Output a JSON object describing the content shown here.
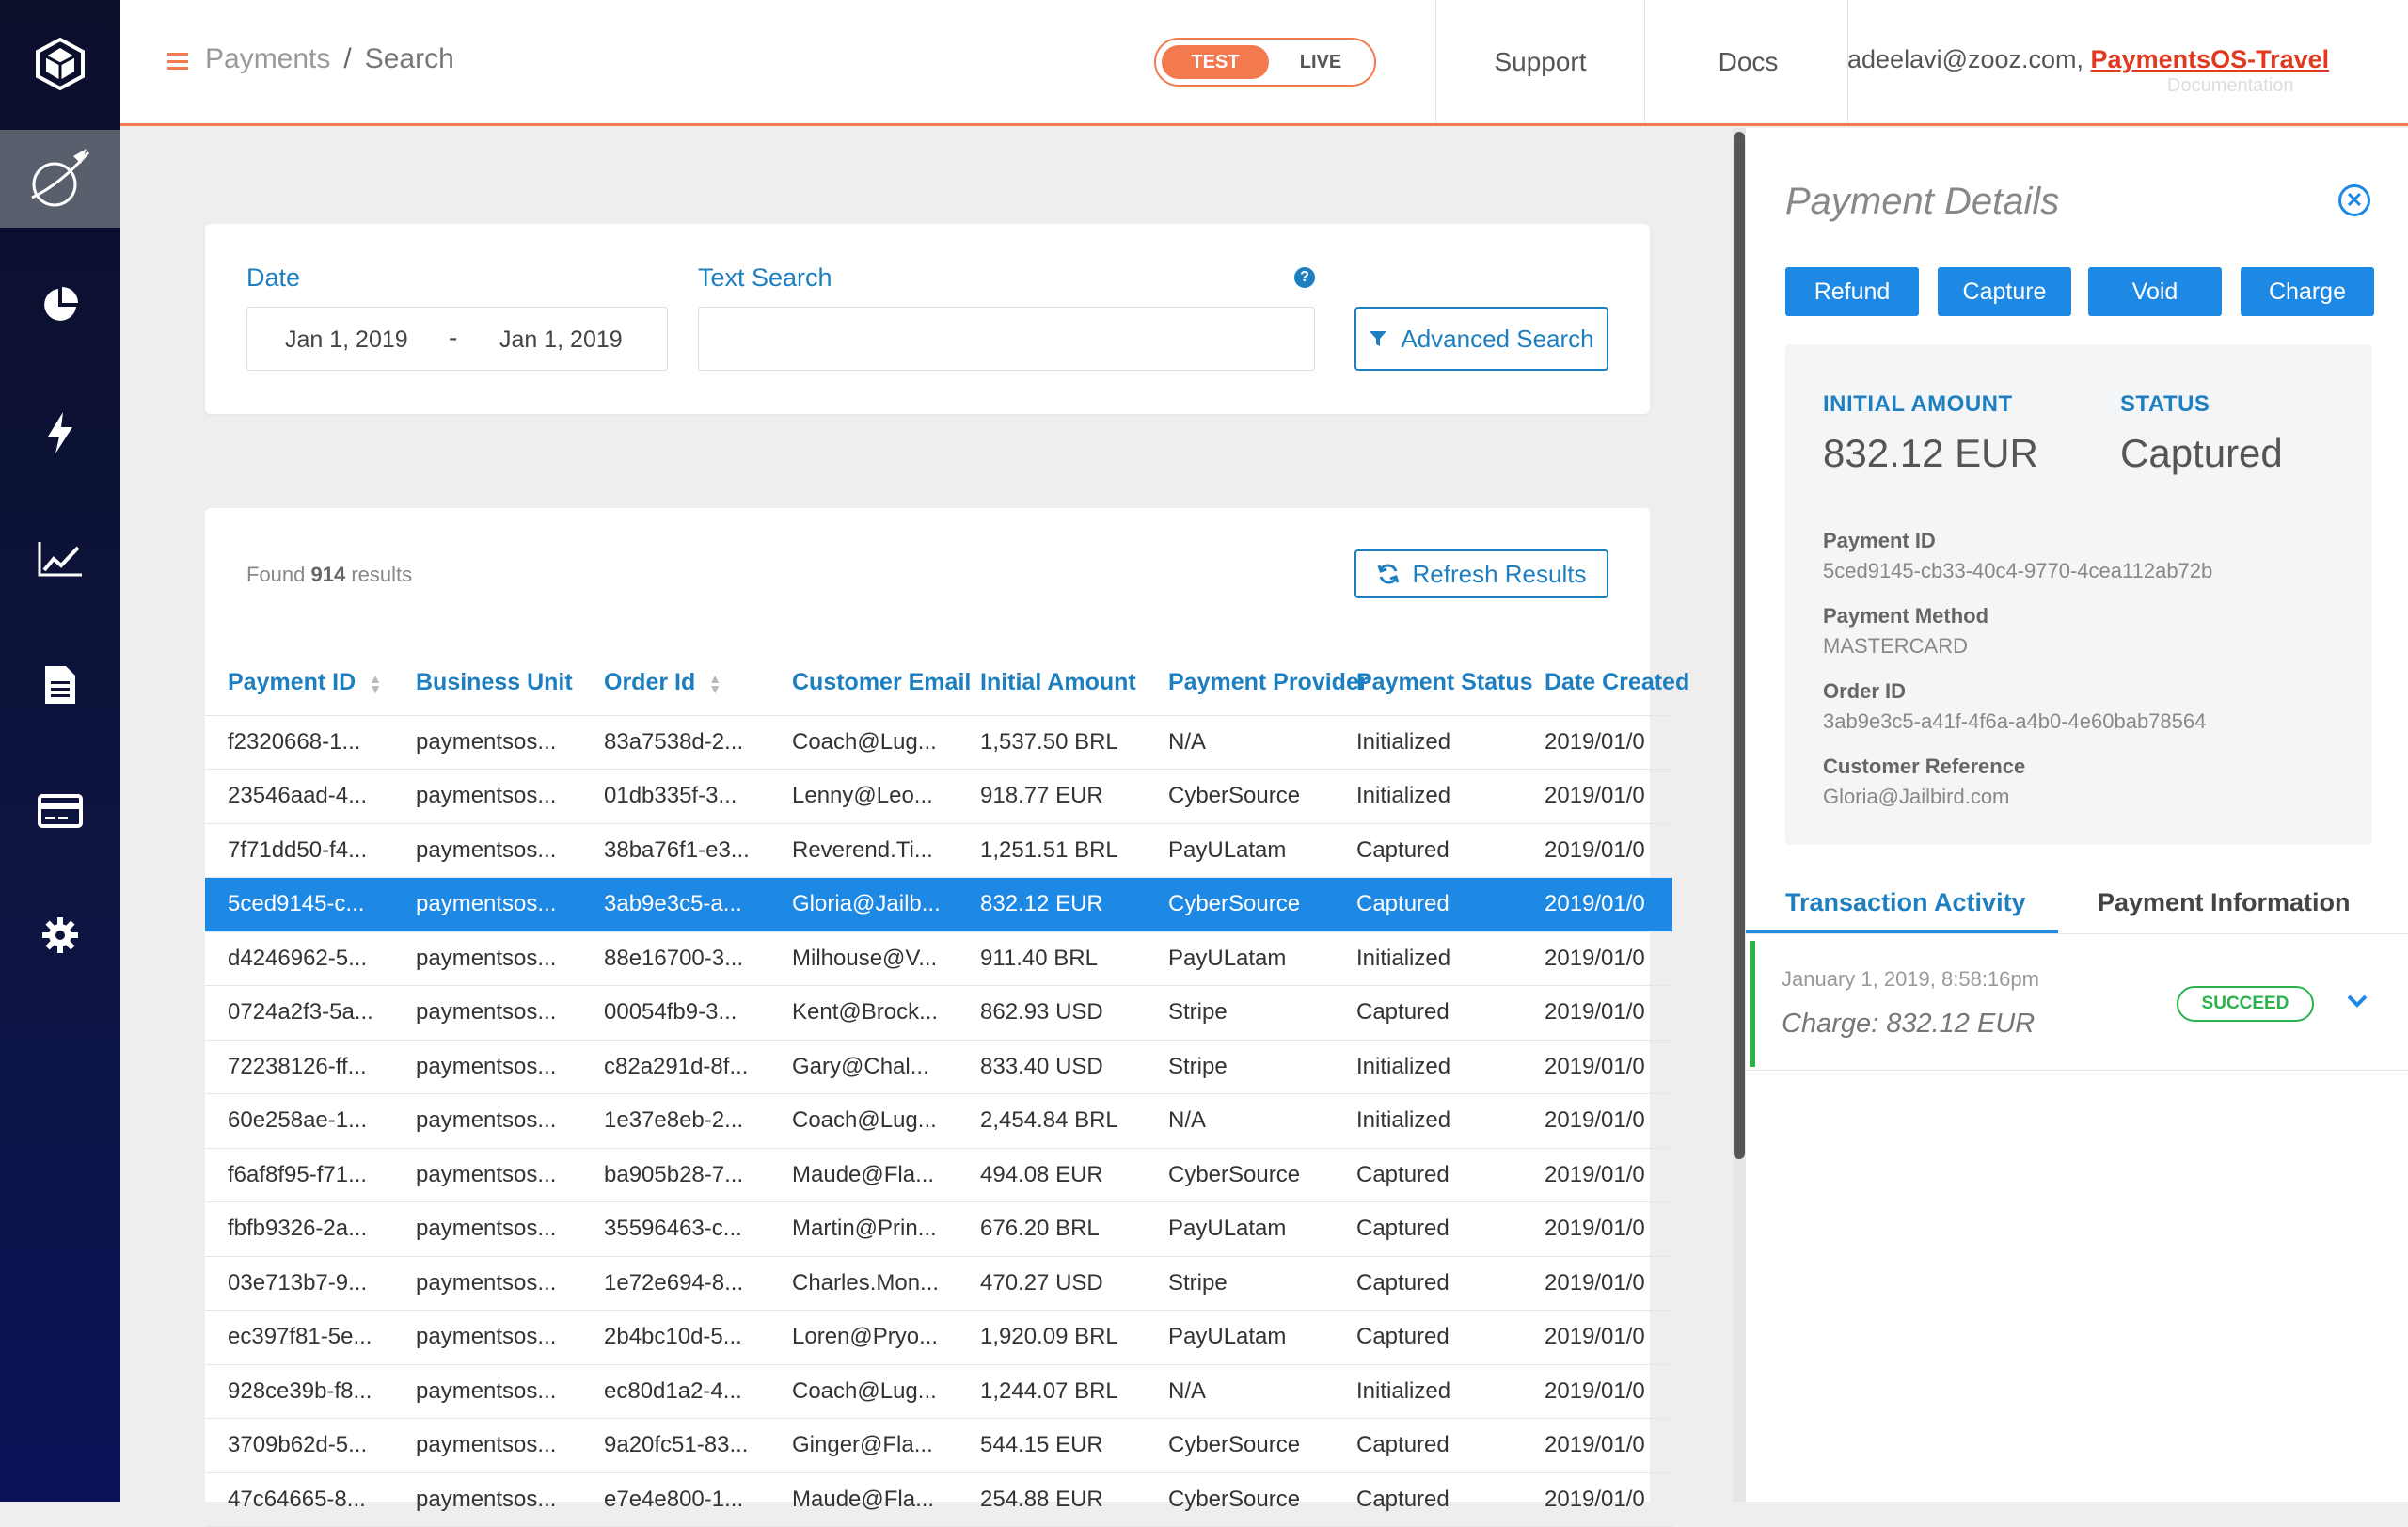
{
  "header": {
    "breadcrumb_root": "Payments",
    "breadcrumb_sep": "/",
    "breadcrumb_current": "Search",
    "env_test": "TEST",
    "env_live": "LIVE",
    "support": "Support",
    "docs": "Docs",
    "user_email": "adeelavi@zooz.com,",
    "account": "PaymentsOS-Travel",
    "ghost_text": "Documentation"
  },
  "sidebar": {
    "items": [
      "logo-icon",
      "rocket-icon",
      "pie-chart-icon",
      "lightning-icon",
      "line-chart-icon",
      "document-icon",
      "credit-card-icon",
      "settings-icon"
    ],
    "active": "rocket-icon"
  },
  "search": {
    "date_label": "Date",
    "date_from": "Jan 1, 2019",
    "date_dash": "-",
    "date_to": "Jan 1, 2019",
    "text_label": "Text Search",
    "text_value": "",
    "help": "?",
    "advanced": "Advanced Search"
  },
  "results": {
    "found_prefix": "Found",
    "found_count": "914",
    "found_suffix": "results",
    "refresh": "Refresh Results",
    "columns": [
      "Payment ID",
      "Business Unit",
      "Order Id",
      "Customer Email",
      "Initial Amount",
      "Payment Provider",
      "Payment Status",
      "Date Created"
    ],
    "rows": [
      [
        "f2320668-1...",
        "paymentsos...",
        "83a7538d-2...",
        "Coach@Lug...",
        "1,537.50 BRL",
        "N/A",
        "Initialized",
        "2019/01/0"
      ],
      [
        "23546aad-4...",
        "paymentsos...",
        "01db335f-3...",
        "Lenny@Leo...",
        "918.77 EUR",
        "CyberSource",
        "Initialized",
        "2019/01/0"
      ],
      [
        "7f71dd50-f4...",
        "paymentsos...",
        "38ba76f1-e3...",
        "Reverend.Ti...",
        "1,251.51 BRL",
        "PayULatam",
        "Captured",
        "2019/01/0"
      ],
      [
        "5ced9145-c...",
        "paymentsos...",
        "3ab9e3c5-a...",
        "Gloria@Jailb...",
        "832.12 EUR",
        "CyberSource",
        "Captured",
        "2019/01/0"
      ],
      [
        "d4246962-5...",
        "paymentsos...",
        "88e16700-3...",
        "Milhouse@V...",
        "911.40 BRL",
        "PayULatam",
        "Initialized",
        "2019/01/0"
      ],
      [
        "0724a2f3-5a...",
        "paymentsos...",
        "00054fb9-3...",
        "Kent@Brock...",
        "862.93 USD",
        "Stripe",
        "Captured",
        "2019/01/0"
      ],
      [
        "72238126-ff...",
        "paymentsos...",
        "c82a291d-8f...",
        "Gary@Chal...",
        "833.40 USD",
        "Stripe",
        "Initialized",
        "2019/01/0"
      ],
      [
        "60e258ae-1...",
        "paymentsos...",
        "1e37e8eb-2...",
        "Coach@Lug...",
        "2,454.84 BRL",
        "N/A",
        "Initialized",
        "2019/01/0"
      ],
      [
        "f6af8f95-f71...",
        "paymentsos...",
        "ba905b28-7...",
        "Maude@Fla...",
        "494.08 EUR",
        "CyberSource",
        "Captured",
        "2019/01/0"
      ],
      [
        "fbfb9326-2a...",
        "paymentsos...",
        "35596463-c...",
        "Martin@Prin...",
        "676.20 BRL",
        "PayULatam",
        "Captured",
        "2019/01/0"
      ],
      [
        "03e713b7-9...",
        "paymentsos...",
        "1e72e694-8...",
        "Charles.Mon...",
        "470.27 USD",
        "Stripe",
        "Captured",
        "2019/01/0"
      ],
      [
        "ec397f81-5e...",
        "paymentsos...",
        "2b4bc10d-5...",
        "Loren@Pryo...",
        "1,920.09 BRL",
        "PayULatam",
        "Captured",
        "2019/01/0"
      ],
      [
        "928ce39b-f8...",
        "paymentsos...",
        "ec80d1a2-4...",
        "Coach@Lug...",
        "1,244.07 BRL",
        "N/A",
        "Initialized",
        "2019/01/0"
      ],
      [
        "3709b62d-5...",
        "paymentsos...",
        "9a20fc51-83...",
        "Ginger@Fla...",
        "544.15 EUR",
        "CyberSource",
        "Captured",
        "2019/01/0"
      ],
      [
        "47c64665-8...",
        "paymentsos...",
        "e7e4e800-1...",
        "Maude@Fla...",
        "254.88 EUR",
        "CyberSource",
        "Captured",
        "2019/01/0"
      ]
    ],
    "selected_index": 3
  },
  "details": {
    "title": "Payment Details",
    "close": "✕",
    "actions": [
      "Refund",
      "Capture",
      "Void",
      "Charge"
    ],
    "initial_amount_label": "INITIAL AMOUNT",
    "initial_amount": "832.12 EUR",
    "status_label": "STATUS",
    "status": "Captured",
    "payment_id_label": "Payment ID",
    "payment_id": "5ced9145-cb33-40c4-9770-4cea112ab72b",
    "payment_method_label": "Payment Method",
    "payment_method": "MASTERCARD",
    "order_id_label": "Order ID",
    "order_id": "3ab9e3c5-a41f-4f6a-a4b0-4e60bab78564",
    "customer_ref_label": "Customer Reference",
    "customer_ref": "Gloria@Jailbird.com",
    "tab_activity": "Transaction Activity",
    "tab_info": "Payment Information",
    "activity_date": "January 1, 2019, 8:58:16pm",
    "activity_desc": "Charge:  832.12 EUR",
    "activity_status": "SUCCEED"
  },
  "colors": {
    "accent_orange": "#f37a4f",
    "primary_blue": "#1e88e5",
    "success_green": "#2bb24c",
    "sidebar_bg": "#0d1440"
  }
}
